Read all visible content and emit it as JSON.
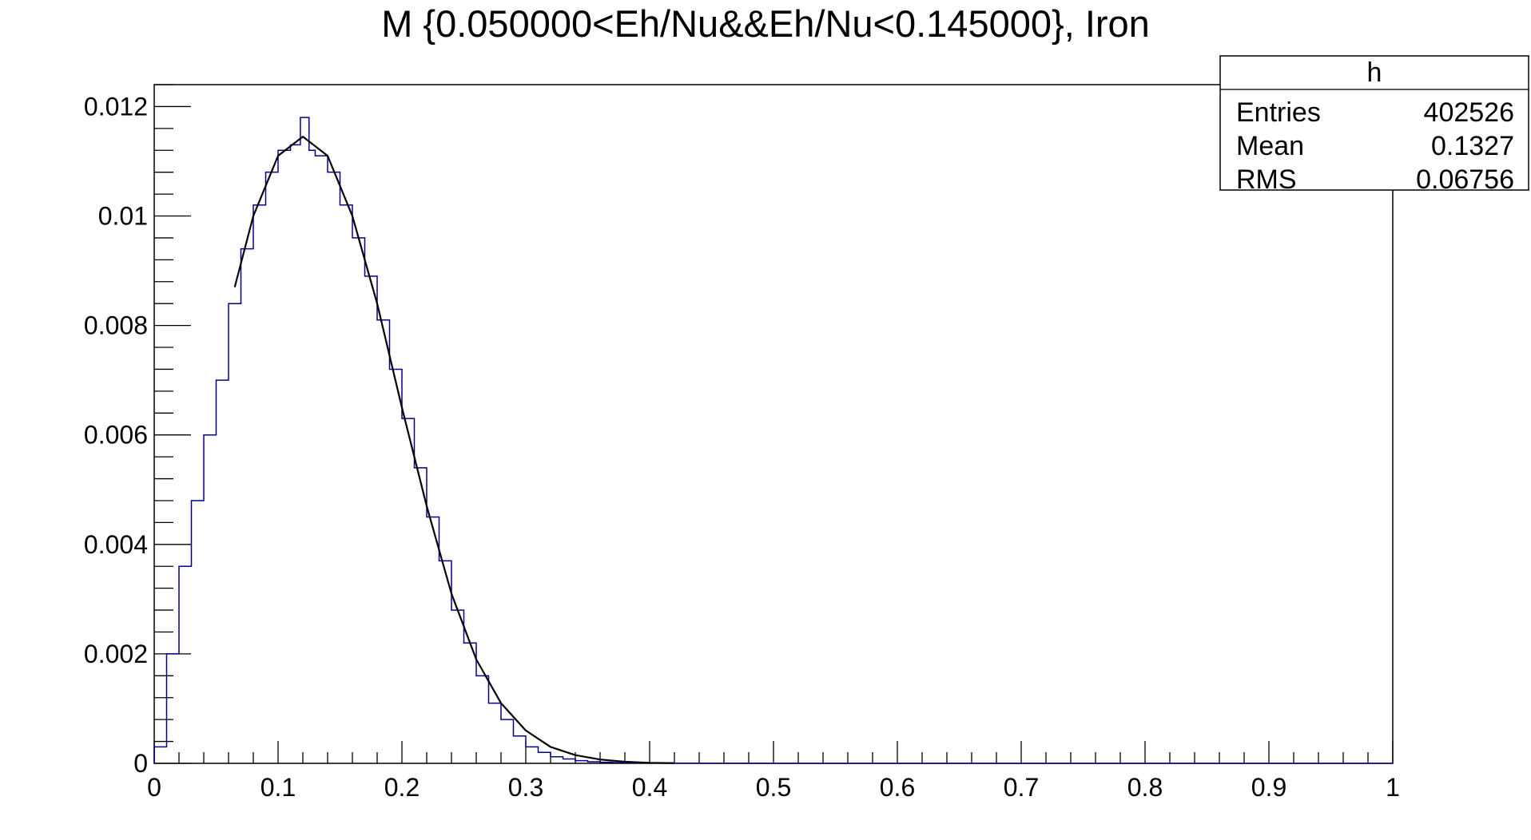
{
  "chart_data": {
    "type": "histogram",
    "title": "M {0.050000<Eh/Nu&&Eh/Nu<0.145000}, Iron",
    "xlabel": "",
    "ylabel": "",
    "xlim": [
      0,
      1
    ],
    "ylim": [
      0,
      0.0124
    ],
    "x_ticks": [
      "0",
      "0.1",
      "0.2",
      "0.3",
      "0.4",
      "0.5",
      "0.6",
      "0.7",
      "0.8",
      "0.9",
      "1"
    ],
    "y_ticks": [
      "0",
      "0.002",
      "0.004",
      "0.006",
      "0.008",
      "0.01",
      "0.012"
    ],
    "grid": false,
    "colors": {
      "histogram": "#00008b",
      "fit": "#000000"
    },
    "stats_box": {
      "title": "h",
      "rows": [
        {
          "label": "Entries",
          "value": "402526"
        },
        {
          "label": "Mean",
          "value": "0.1327"
        },
        {
          "label": "RMS",
          "value": "0.06756"
        }
      ]
    },
    "series": [
      {
        "kind": "histogram",
        "x": [
          0.0,
          0.01,
          0.02,
          0.03,
          0.04,
          0.05,
          0.06,
          0.07,
          0.08,
          0.09,
          0.1,
          0.11,
          0.118,
          0.125,
          0.13,
          0.14,
          0.15,
          0.16,
          0.17,
          0.18,
          0.19,
          0.2,
          0.21,
          0.22,
          0.23,
          0.24,
          0.25,
          0.26,
          0.27,
          0.28,
          0.29,
          0.3,
          0.31,
          0.32,
          0.33,
          0.34,
          0.35,
          0.36,
          0.37,
          0.38,
          0.4,
          0.42,
          0.44
        ],
        "y": [
          0.0003,
          0.002,
          0.0036,
          0.0048,
          0.006,
          0.007,
          0.0084,
          0.0094,
          0.0102,
          0.0108,
          0.0112,
          0.0113,
          0.0118,
          0.0112,
          0.0111,
          0.0108,
          0.0102,
          0.0096,
          0.0089,
          0.0081,
          0.0072,
          0.0063,
          0.0054,
          0.0045,
          0.0037,
          0.0028,
          0.0022,
          0.0016,
          0.0011,
          0.0008,
          0.0005,
          0.0003,
          0.0002,
          0.00012,
          8e-05,
          5e-05,
          3e-05,
          2e-05,
          1.5e-05,
          1e-05,
          5e-06,
          3e-06,
          1e-06
        ]
      },
      {
        "kind": "fit",
        "x": [
          0.065,
          0.08,
          0.1,
          0.12,
          0.14,
          0.16,
          0.18,
          0.2,
          0.22,
          0.24,
          0.26,
          0.28,
          0.3,
          0.32,
          0.34,
          0.36,
          0.38,
          0.4,
          0.42
        ],
        "y": [
          0.0087,
          0.01,
          0.0111,
          0.01145,
          0.0111,
          0.01,
          0.0084,
          0.0065,
          0.0047,
          0.0031,
          0.0019,
          0.0011,
          0.0006,
          0.0003,
          0.00015,
          7e-05,
          3e-05,
          1e-05,
          4e-06
        ]
      }
    ]
  }
}
